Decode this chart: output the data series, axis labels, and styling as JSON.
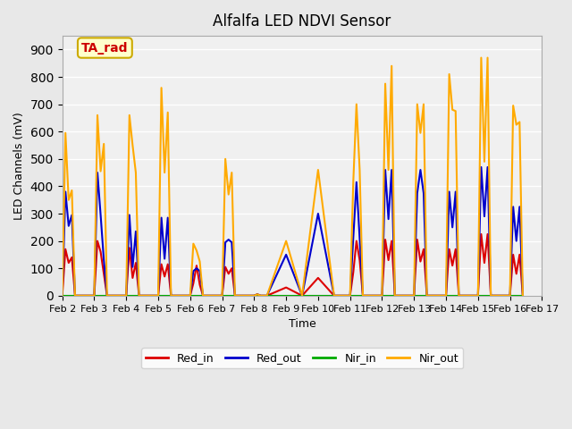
{
  "title": "Alfalfa LED NDVI Sensor",
  "xlabel": "Time",
  "ylabel": "LED Channels (mV)",
  "ylim": [
    0,
    950
  ],
  "yticks": [
    0,
    100,
    200,
    300,
    400,
    500,
    600,
    700,
    800,
    900
  ],
  "background_color": "#e8e8e8",
  "plot_bg_color": "#f0f0f0",
  "annotation_text": "TA_rad",
  "annotation_bg": "#ffffcc",
  "annotation_border": "#ccaa00",
  "legend_entries": [
    "Red_in",
    "Red_out",
    "Nir_in",
    "Nir_out"
  ],
  "colors": {
    "Red_in": "#dd0000",
    "Red_out": "#0000cc",
    "Nir_in": "#00aa00",
    "Nir_out": "#ffaa00"
  },
  "x_labels": [
    "Feb 2",
    "Feb 3",
    "Feb 4",
    "Feb 5",
    "Feb 6",
    "Feb 7",
    "Feb 8",
    "Feb 9",
    "Feb 10",
    "Feb 11",
    "Feb 12",
    "Feb 13",
    "Feb 14",
    "Feb 15",
    "Feb 16",
    "Feb 17"
  ],
  "x_positions": [
    2,
    3,
    4,
    5,
    6,
    7,
    8,
    9,
    10,
    11,
    12,
    13,
    14,
    15,
    16,
    17
  ],
  "time": [
    2.0,
    2.1,
    2.2,
    2.3,
    2.4,
    3.0,
    3.1,
    3.2,
    3.3,
    3.4,
    4.0,
    4.1,
    4.2,
    4.3,
    4.4,
    5.0,
    5.1,
    5.2,
    5.3,
    5.4,
    6.0,
    6.1,
    6.2,
    6.3,
    6.4,
    7.0,
    7.1,
    7.2,
    7.3,
    7.4,
    8.0,
    8.1,
    8.2,
    8.3,
    8.4,
    9.0,
    9.5,
    10.0,
    10.5,
    11.0,
    11.1,
    11.2,
    11.3,
    11.4,
    12.0,
    12.1,
    12.2,
    12.3,
    12.4,
    13.0,
    13.1,
    13.2,
    13.3,
    13.4,
    14.0,
    14.1,
    14.2,
    14.3,
    14.4,
    15.0,
    15.1,
    15.2,
    15.3,
    15.4,
    16.0,
    16.1,
    16.2,
    16.3,
    16.4
  ],
  "Red_in": [
    0,
    170,
    120,
    140,
    0,
    0,
    200,
    160,
    80,
    0,
    0,
    175,
    65,
    120,
    0,
    0,
    115,
    70,
    115,
    0,
    0,
    45,
    110,
    40,
    0,
    0,
    105,
    80,
    100,
    0,
    0,
    5,
    0,
    0,
    0,
    30,
    0,
    65,
    0,
    0,
    85,
    200,
    130,
    0,
    0,
    205,
    130,
    200,
    0,
    0,
    205,
    125,
    170,
    0,
    0,
    170,
    110,
    170,
    0,
    0,
    225,
    120,
    225,
    0,
    0,
    150,
    80,
    150,
    0
  ],
  "Red_out": [
    0,
    380,
    255,
    295,
    0,
    0,
    450,
    295,
    130,
    0,
    0,
    295,
    105,
    235,
    0,
    0,
    285,
    135,
    285,
    0,
    0,
    90,
    100,
    90,
    0,
    0,
    195,
    205,
    195,
    0,
    0,
    5,
    0,
    0,
    0,
    150,
    0,
    300,
    0,
    0,
    210,
    415,
    210,
    0,
    0,
    460,
    280,
    460,
    0,
    0,
    375,
    460,
    375,
    0,
    0,
    380,
    250,
    380,
    0,
    0,
    470,
    290,
    470,
    0,
    0,
    325,
    200,
    325,
    0
  ],
  "Nir_in": [
    0,
    0,
    0,
    0,
    0,
    0,
    0,
    0,
    0,
    0,
    0,
    0,
    0,
    0,
    0,
    0,
    0,
    0,
    0,
    0,
    0,
    0,
    0,
    0,
    0,
    0,
    0,
    0,
    0,
    0,
    0,
    0,
    0,
    0,
    0,
    0,
    0,
    0,
    0,
    0,
    0,
    0,
    0,
    0,
    0,
    0,
    0,
    0,
    0,
    0,
    0,
    0,
    0,
    0,
    0,
    0,
    0,
    0,
    0,
    0,
    0,
    0,
    0,
    0,
    0,
    0,
    0,
    0,
    0
  ],
  "Nir_out": [
    0,
    595,
    350,
    385,
    0,
    0,
    660,
    455,
    555,
    0,
    0,
    660,
    550,
    450,
    0,
    0,
    760,
    450,
    670,
    0,
    0,
    190,
    165,
    125,
    0,
    0,
    500,
    370,
    450,
    0,
    0,
    5,
    0,
    0,
    0,
    200,
    0,
    460,
    0,
    0,
    415,
    700,
    460,
    0,
    0,
    775,
    460,
    840,
    0,
    0,
    700,
    595,
    700,
    0,
    0,
    810,
    680,
    675,
    0,
    0,
    870,
    490,
    870,
    0,
    0,
    695,
    625,
    635,
    0
  ]
}
